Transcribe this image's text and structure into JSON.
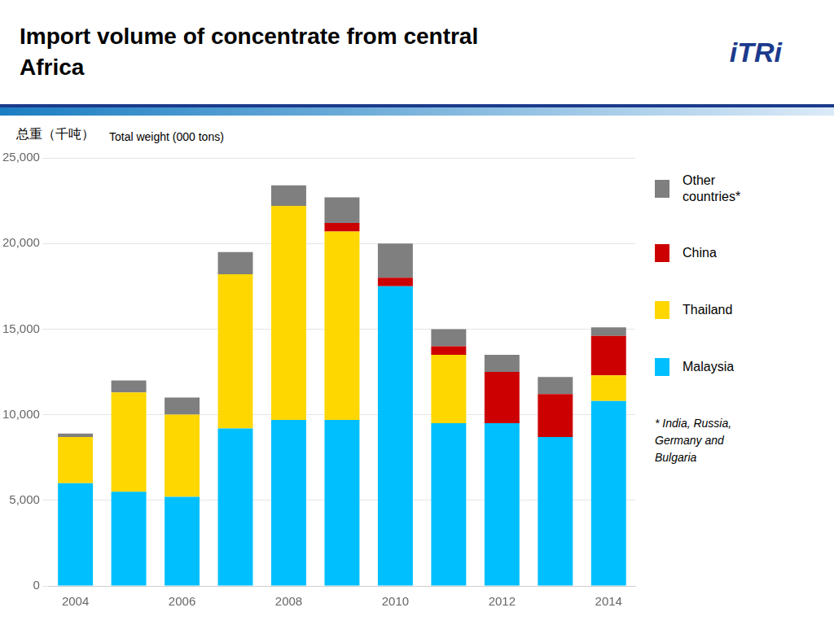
{
  "chart_data": {
    "type": "bar",
    "title": "Import volume of concentrate from central\nAfrica",
    "ylabel": [
      "总重（千吨）",
      "Total weight (000 tons)"
    ],
    "annotations": [
      "iTRi",
      "* India, Russia,\nGermany and\nBulgaria"
    ],
    "categories": [
      "2004",
      null,
      "2006",
      null,
      "2008",
      null,
      "2010",
      null,
      "2012",
      null,
      "2014"
    ],
    "series": [
      {
        "name": "Malaysia",
        "color": "#00BFFF",
        "values": [
          6000,
          5500,
          5200,
          9200,
          9700,
          9700,
          17500,
          9500,
          9500,
          8700,
          10800
        ]
      },
      {
        "name": "Thailand",
        "color": "#FFD700",
        "values": [
          2700,
          5800,
          4800,
          9000,
          12500,
          11000,
          0,
          4000,
          0,
          0,
          1500
        ]
      },
      {
        "name": "China",
        "color": "#CC0000",
        "values": [
          0,
          0,
          0,
          0,
          0,
          500,
          500,
          500,
          3000,
          2500,
          2300
        ]
      },
      {
        "name": "Other\ncountries*",
        "color": "#7F7F7F",
        "values": [
          200,
          700,
          1000,
          1300,
          1200,
          1500,
          2000,
          1000,
          1000,
          1000,
          500
        ]
      }
    ],
    "ylim": [
      0,
      25000
    ],
    "yticks": [
      0,
      {
        "value": 5000,
        "label": "5,000"
      },
      {
        "value": 10000,
        "label": "10,000"
      },
      {
        "value": 15000,
        "label": "15,000"
      },
      {
        "value": 20000,
        "label": "20,000"
      },
      {
        "value": 25000,
        "label": "25,000"
      }
    ],
    "stacked": true,
    "grid": true,
    "legend": "right"
  }
}
